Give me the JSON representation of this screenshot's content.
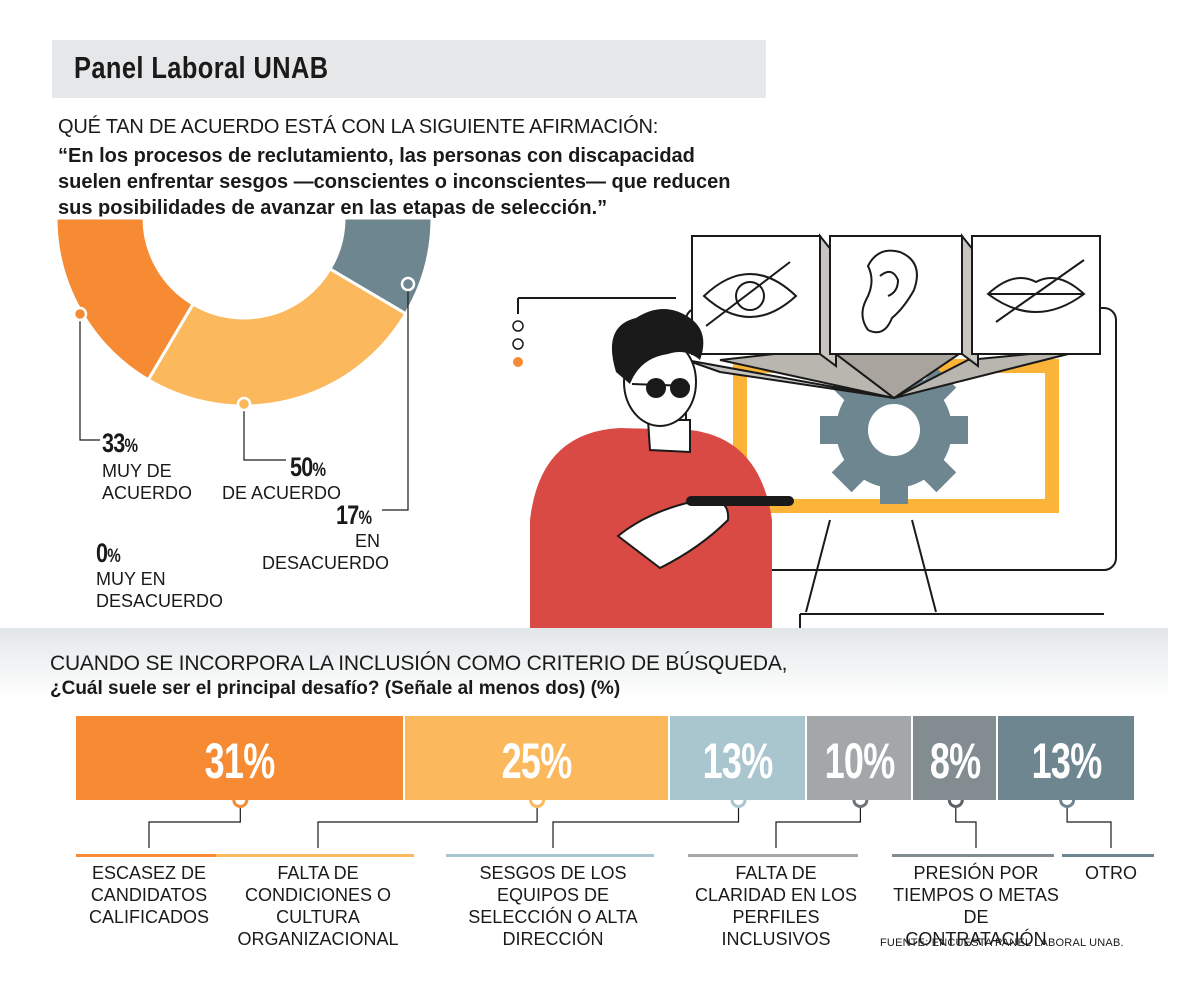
{
  "header": {
    "title": "Panel Laboral UNAB"
  },
  "question1": {
    "line1": "QUÉ TAN DE ACUERDO ESTÁ CON LA SIGUIENTE AFIRMACIÓN:",
    "quote": "“En los procesos de reclutamiento, las personas con discapacidad suelen enfrentar sesgos —conscientes o inconscientes— que reducen sus posibilidades de avanzar en las etapas de selección.”"
  },
  "question2": {
    "line1": "CUANDO SE INCORPORA LA INCLUSIÓN COMO CRITERIO DE BÚSQUEDA,",
    "line2": "¿Cuál suele ser el principal desafío? (Señale al menos dos) (%)"
  },
  "source": "FUENTE: ENCUESTA PANEL LABORAL UNAB.",
  "chart_data": [
    {
      "type": "pie",
      "categories": [
        "MUY DE ACUERDO",
        "DE ACUERDO",
        "EN DESACUERDO",
        "MUY EN DESACUERDO"
      ],
      "values": [
        33,
        50,
        17,
        0
      ],
      "labels": [
        "33",
        "50",
        "17",
        "0"
      ],
      "unit": "%",
      "colors": [
        "#f68b33",
        "#fbb85c",
        "#6e8690",
        "#cccccc"
      ]
    },
    {
      "type": "bar",
      "categories": [
        "ESCASEZ DE CANDIDATOS CALIFICADOS",
        "FALTA DE CONDICIONES O CULTURA ORGANIZACIONAL",
        "SESGOS DE LOS EQUIPOS DE SELECCIÓN O ALTA DIRECCIÓN",
        "FALTA DE CLARIDAD EN LOS PERFILES INCLUSIVOS",
        "PRESIÓN POR TIEMPOS O METAS DE CONTRATACIÓN",
        "OTRO"
      ],
      "values": [
        31,
        25,
        13,
        10,
        8,
        13
      ],
      "labels": [
        "31",
        "25",
        "13",
        "10",
        "8",
        "13"
      ],
      "unit": "%",
      "colors": [
        "#f68b33",
        "#fbb85c",
        "#a9c5cd",
        "#a3a7a9",
        "#838c90",
        "#6e8690"
      ]
    }
  ]
}
